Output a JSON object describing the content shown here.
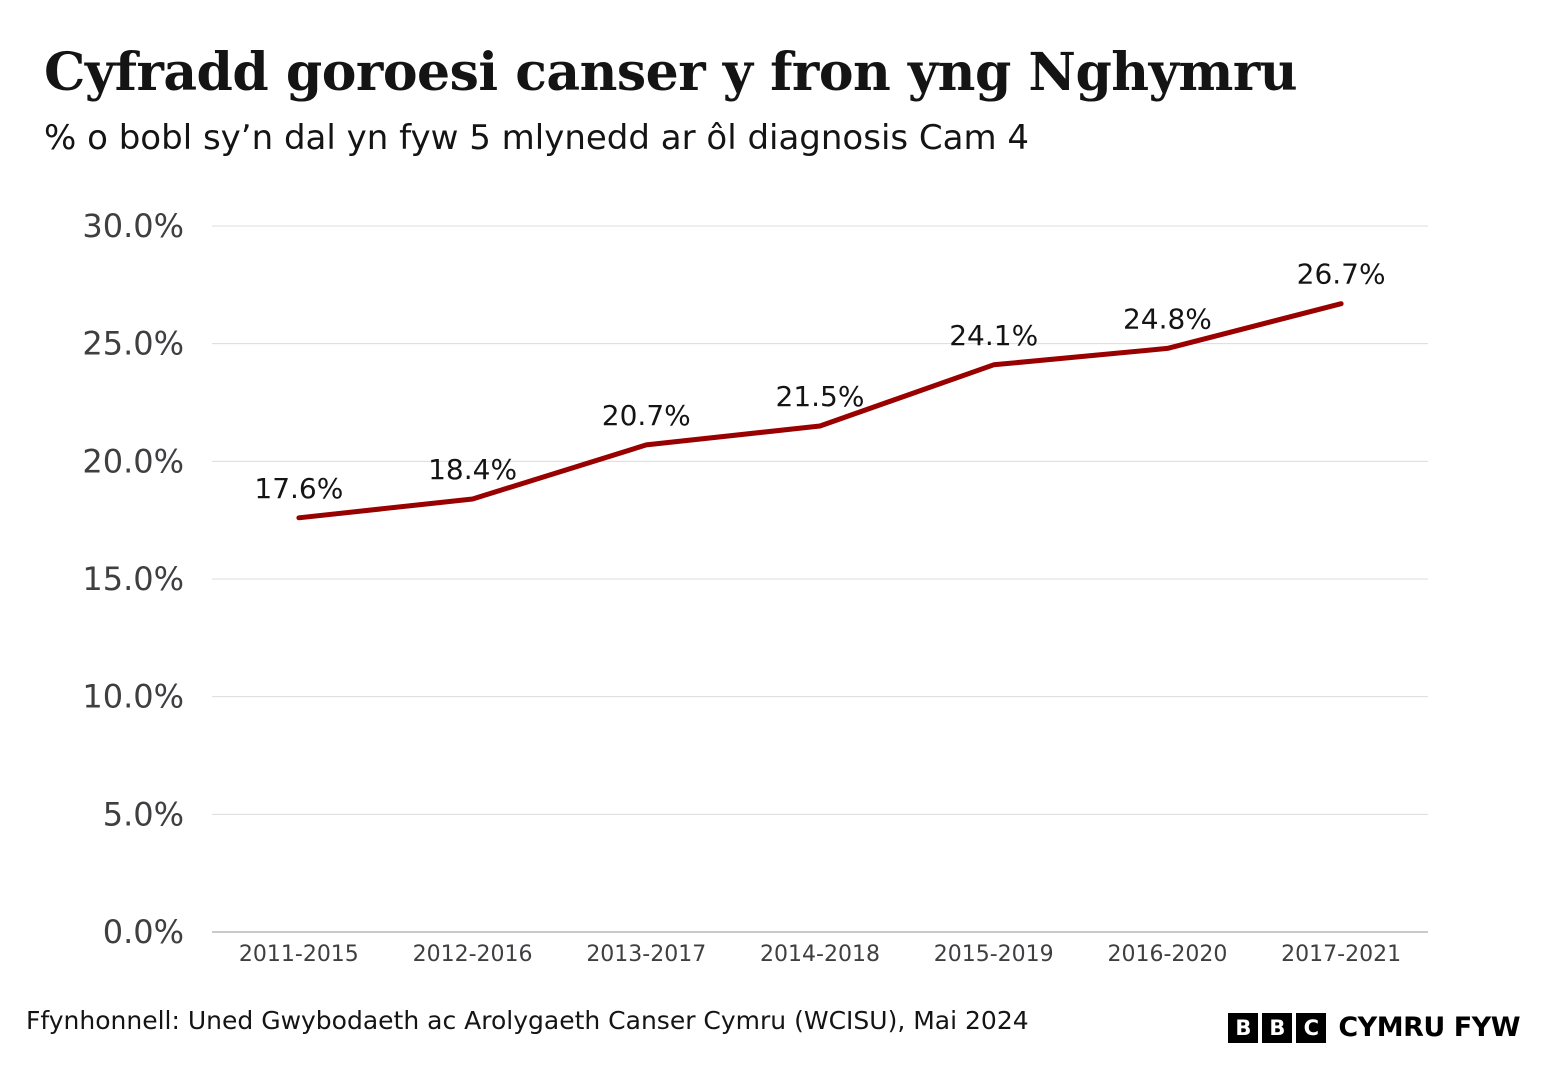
{
  "chart_data": {
    "type": "line",
    "title": "Cyfradd goroesi canser y fron yng Nghymru",
    "subtitle": "% o bobl sy’n dal yn fyw 5 mlynedd ar ôl diagnosis Cam 4",
    "categories": [
      "2011-2015",
      "2012-2016",
      "2013-2017",
      "2014-2018",
      "2015-2019",
      "2016-2020",
      "2017-2021"
    ],
    "series": [
      {
        "values": [
          17.6,
          18.4,
          20.7,
          21.5,
          24.1,
          24.8,
          26.7
        ]
      }
    ],
    "data_labels": [
      "17.6%",
      "18.4%",
      "20.7%",
      "21.5%",
      "24.1%",
      "24.8%",
      "26.7%"
    ],
    "ylim": [
      0,
      30
    ],
    "y_ticks": [
      0,
      5,
      10,
      15,
      20,
      25,
      30
    ],
    "y_tick_labels": [
      "0.0%",
      "5.0%",
      "10.0%",
      "15.0%",
      "20.0%",
      "25.0%",
      "30.0%"
    ],
    "grid": true,
    "legend": "none",
    "line_color": "#990000",
    "grid_color": "#dcdcdc"
  },
  "footer": {
    "source": "Ffynhonnell: Uned Gwybodaeth ac Arolygaeth Canser Cymru (WCISU), Mai 2024",
    "brand_letters": [
      "B",
      "B",
      "C"
    ],
    "brand_name": "CYMRU FYW"
  }
}
